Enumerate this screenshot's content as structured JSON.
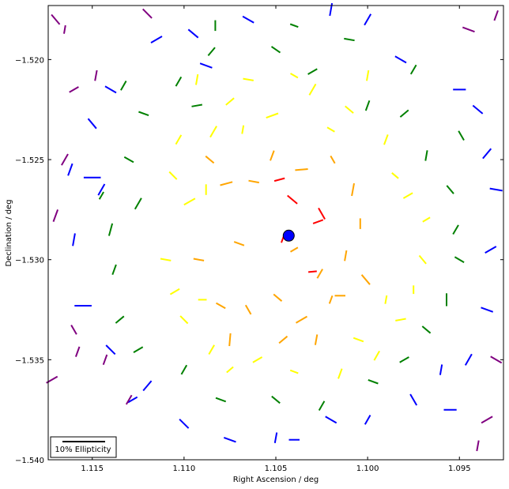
{
  "chart_data": {
    "type": "scatter",
    "xlabel": "Right Ascension / deg",
    "ylabel": "Declination / deg",
    "xlim": [
      1.1174,
      1.0926
    ],
    "ylim": [
      -1.54,
      -1.5173
    ],
    "x_ticks": [
      "1.115",
      "1.110",
      "1.105",
      "1.100",
      "1.095"
    ],
    "x_tick_values": [
      1.115,
      1.11,
      1.105,
      1.1,
      1.095
    ],
    "y_ticks": [
      "−1.520",
      "−1.525",
      "−1.530",
      "−1.535",
      "−1.540"
    ],
    "y_tick_values": [
      -1.52,
      -1.525,
      -1.53,
      -1.535,
      -1.54
    ],
    "x_reversed": true,
    "grid": false,
    "center": {
      "ra": 1.1043,
      "dec": -1.5288,
      "color": "#0000ff"
    },
    "legend": {
      "label": "10% Ellipticity",
      "placement": "lower-left",
      "scale_ellipticity": 0.1
    },
    "series_colors": {
      "red": "#ff0000",
      "orange": "#ffa500",
      "yellow": "#ffff00",
      "green": "#008000",
      "blue": "#0000ff",
      "purple": "#800080"
    },
    "sticks": [
      {
        "ra": 1.1046,
        "dec": -1.5289,
        "e": 0.025,
        "angle": 70,
        "color": "red"
      },
      {
        "ra": 1.1027,
        "dec": -1.5281,
        "e": 0.025,
        "angle": 20,
        "color": "red"
      },
      {
        "ra": 1.1041,
        "dec": -1.527,
        "e": 0.03,
        "angle": -40,
        "color": "red"
      },
      {
        "ra": 1.103,
        "dec": -1.5306,
        "e": 0.02,
        "angle": 5,
        "color": "red"
      },
      {
        "ra": 1.1048,
        "dec": -1.526,
        "e": 0.025,
        "angle": 15,
        "color": "red"
      },
      {
        "ra": 1.1025,
        "dec": -1.5277,
        "e": 0.03,
        "angle": -60,
        "color": "red"
      },
      {
        "ra": 1.1077,
        "dec": -1.5262,
        "e": 0.03,
        "angle": 15,
        "color": "orange"
      },
      {
        "ra": 1.1062,
        "dec": -1.5261,
        "e": 0.025,
        "angle": -10,
        "color": "orange"
      },
      {
        "ra": 1.1086,
        "dec": -1.525,
        "e": 0.025,
        "angle": -40,
        "color": "orange"
      },
      {
        "ra": 1.1036,
        "dec": -1.5255,
        "e": 0.03,
        "angle": 5,
        "color": "orange"
      },
      {
        "ra": 1.1008,
        "dec": -1.5265,
        "e": 0.03,
        "angle": 80,
        "color": "orange"
      },
      {
        "ra": 1.1004,
        "dec": -1.5282,
        "e": 0.025,
        "angle": 90,
        "color": "orange"
      },
      {
        "ra": 1.1049,
        "dec": -1.5319,
        "e": 0.025,
        "angle": -40,
        "color": "orange"
      },
      {
        "ra": 1.1036,
        "dec": -1.533,
        "e": 0.03,
        "angle": 30,
        "color": "orange"
      },
      {
        "ra": 1.1046,
        "dec": -1.534,
        "e": 0.025,
        "angle": 40,
        "color": "orange"
      },
      {
        "ra": 1.1026,
        "dec": -1.5307,
        "e": 0.025,
        "angle": 60,
        "color": "orange"
      },
      {
        "ra": 1.1001,
        "dec": -1.531,
        "e": 0.03,
        "angle": -50,
        "color": "orange"
      },
      {
        "ra": 1.102,
        "dec": -1.532,
        "e": 0.02,
        "angle": 70,
        "color": "orange"
      },
      {
        "ra": 1.108,
        "dec": -1.5323,
        "e": 0.025,
        "angle": -30,
        "color": "orange"
      },
      {
        "ra": 1.1075,
        "dec": -1.534,
        "e": 0.03,
        "angle": 85,
        "color": "orange"
      },
      {
        "ra": 1.1065,
        "dec": -1.5325,
        "e": 0.025,
        "angle": -60,
        "color": "orange"
      },
      {
        "ra": 1.1092,
        "dec": -1.53,
        "e": 0.025,
        "angle": -10,
        "color": "orange"
      },
      {
        "ra": 1.1052,
        "dec": -1.5248,
        "e": 0.025,
        "angle": 70,
        "color": "orange"
      },
      {
        "ra": 1.1019,
        "dec": -1.525,
        "e": 0.02,
        "angle": -60,
        "color": "orange"
      },
      {
        "ra": 1.1012,
        "dec": -1.5298,
        "e": 0.025,
        "angle": 80,
        "color": "orange"
      },
      {
        "ra": 1.104,
        "dec": -1.5295,
        "e": 0.02,
        "angle": 30,
        "color": "orange"
      },
      {
        "ra": 1.107,
        "dec": -1.5292,
        "e": 0.025,
        "angle": -20,
        "color": "orange"
      },
      {
        "ra": 1.1028,
        "dec": -1.534,
        "e": 0.025,
        "angle": 80,
        "color": "orange"
      },
      {
        "ra": 1.1015,
        "dec": -1.5318,
        "e": 0.025,
        "angle": 0,
        "color": "orange"
      },
      {
        "ra": 1.111,
        "dec": -1.53,
        "e": 0.025,
        "angle": -10,
        "color": "yellow"
      },
      {
        "ra": 1.1097,
        "dec": -1.5271,
        "e": 0.03,
        "angle": 30,
        "color": "yellow"
      },
      {
        "ra": 1.1088,
        "dec": -1.5265,
        "e": 0.025,
        "angle": 90,
        "color": "yellow"
      },
      {
        "ra": 1.1106,
        "dec": -1.5258,
        "e": 0.025,
        "angle": -45,
        "color": "yellow"
      },
      {
        "ra": 1.1084,
        "dec": -1.5236,
        "e": 0.03,
        "angle": 60,
        "color": "yellow"
      },
      {
        "ra": 1.1075,
        "dec": -1.5221,
        "e": 0.025,
        "angle": 40,
        "color": "yellow"
      },
      {
        "ra": 1.1065,
        "dec": -1.521,
        "e": 0.025,
        "angle": -10,
        "color": "yellow"
      },
      {
        "ra": 1.1052,
        "dec": -1.5228,
        "e": 0.03,
        "angle": 20,
        "color": "yellow"
      },
      {
        "ra": 1.103,
        "dec": -1.5215,
        "e": 0.03,
        "angle": 60,
        "color": "yellow"
      },
      {
        "ra": 1.101,
        "dec": -1.5225,
        "e": 0.025,
        "angle": -40,
        "color": "yellow"
      },
      {
        "ra": 1.099,
        "dec": -1.524,
        "e": 0.025,
        "angle": 70,
        "color": "yellow"
      },
      {
        "ra": 1.0978,
        "dec": -1.5268,
        "e": 0.025,
        "angle": 30,
        "color": "yellow"
      },
      {
        "ra": 1.097,
        "dec": -1.53,
        "e": 0.025,
        "angle": -50,
        "color": "yellow"
      },
      {
        "ra": 1.0975,
        "dec": -1.5315,
        "e": 0.02,
        "angle": 90,
        "color": "yellow"
      },
      {
        "ra": 1.0982,
        "dec": -1.533,
        "e": 0.025,
        "angle": 10,
        "color": "yellow"
      },
      {
        "ra": 1.0995,
        "dec": -1.5348,
        "e": 0.025,
        "angle": 60,
        "color": "yellow"
      },
      {
        "ra": 1.1015,
        "dec": -1.5357,
        "e": 0.025,
        "angle": 70,
        "color": "yellow"
      },
      {
        "ra": 1.104,
        "dec": -1.5356,
        "e": 0.02,
        "angle": -20,
        "color": "yellow"
      },
      {
        "ra": 1.106,
        "dec": -1.535,
        "e": 0.025,
        "angle": 30,
        "color": "yellow"
      },
      {
        "ra": 1.1085,
        "dec": -1.5345,
        "e": 0.025,
        "angle": 60,
        "color": "yellow"
      },
      {
        "ra": 1.11,
        "dec": -1.533,
        "e": 0.025,
        "angle": -45,
        "color": "yellow"
      },
      {
        "ra": 1.1105,
        "dec": -1.5316,
        "e": 0.025,
        "angle": 30,
        "color": "yellow"
      },
      {
        "ra": 1.1093,
        "dec": -1.521,
        "e": 0.025,
        "angle": 80,
        "color": "yellow"
      },
      {
        "ra": 1.104,
        "dec": -1.5208,
        "e": 0.02,
        "angle": -30,
        "color": "yellow"
      },
      {
        "ra": 1.1,
        "dec": -1.5208,
        "e": 0.025,
        "angle": 80,
        "color": "yellow"
      },
      {
        "ra": 1.0985,
        "dec": -1.5258,
        "e": 0.02,
        "angle": -40,
        "color": "yellow"
      },
      {
        "ra": 1.0968,
        "dec": -1.528,
        "e": 0.02,
        "angle": 30,
        "color": "yellow"
      },
      {
        "ra": 1.1103,
        "dec": -1.524,
        "e": 0.025,
        "angle": 60,
        "color": "yellow"
      },
      {
        "ra": 1.109,
        "dec": -1.532,
        "e": 0.02,
        "angle": 0,
        "color": "yellow"
      },
      {
        "ra": 1.1068,
        "dec": -1.5235,
        "e": 0.02,
        "angle": 80,
        "color": "yellow"
      },
      {
        "ra": 1.102,
        "dec": -1.5235,
        "e": 0.02,
        "angle": -30,
        "color": "yellow"
      },
      {
        "ra": 1.099,
        "dec": -1.532,
        "e": 0.02,
        "angle": 80,
        "color": "yellow"
      },
      {
        "ra": 1.1005,
        "dec": -1.534,
        "e": 0.025,
        "angle": -20,
        "color": "yellow"
      },
      {
        "ra": 1.1075,
        "dec": -1.5355,
        "e": 0.02,
        "angle": 40,
        "color": "yellow"
      },
      {
        "ra": 1.114,
        "dec": -1.5285,
        "e": 0.03,
        "angle": 75,
        "color": "green"
      },
      {
        "ra": 1.1125,
        "dec": -1.5272,
        "e": 0.03,
        "angle": 60,
        "color": "green"
      },
      {
        "ra": 1.113,
        "dec": -1.525,
        "e": 0.025,
        "angle": -30,
        "color": "green"
      },
      {
        "ra": 1.1122,
        "dec": -1.5227,
        "e": 0.025,
        "angle": -20,
        "color": "green"
      },
      {
        "ra": 1.1103,
        "dec": -1.5211,
        "e": 0.025,
        "angle": 60,
        "color": "green"
      },
      {
        "ra": 1.1093,
        "dec": -1.5223,
        "e": 0.025,
        "angle": 10,
        "color": "green"
      },
      {
        "ra": 1.1085,
        "dec": -1.5196,
        "e": 0.025,
        "angle": 50,
        "color": "green"
      },
      {
        "ra": 1.105,
        "dec": -1.5195,
        "e": 0.025,
        "angle": -35,
        "color": "green"
      },
      {
        "ra": 1.103,
        "dec": -1.5206,
        "e": 0.025,
        "angle": 30,
        "color": "green"
      },
      {
        "ra": 1.1,
        "dec": -1.5223,
        "e": 0.025,
        "angle": 70,
        "color": "green"
      },
      {
        "ra": 1.098,
        "dec": -1.5227,
        "e": 0.025,
        "angle": 40,
        "color": "green"
      },
      {
        "ra": 1.0968,
        "dec": -1.5248,
        "e": 0.025,
        "angle": 80,
        "color": "green"
      },
      {
        "ra": 1.0955,
        "dec": -1.5265,
        "e": 0.025,
        "angle": -50,
        "color": "green"
      },
      {
        "ra": 1.0952,
        "dec": -1.5285,
        "e": 0.025,
        "angle": 60,
        "color": "green"
      },
      {
        "ra": 1.095,
        "dec": -1.53,
        "e": 0.025,
        "angle": -30,
        "color": "green"
      },
      {
        "ra": 1.0957,
        "dec": -1.532,
        "e": 0.03,
        "angle": 90,
        "color": "green"
      },
      {
        "ra": 1.0968,
        "dec": -1.5335,
        "e": 0.025,
        "angle": -40,
        "color": "green"
      },
      {
        "ra": 1.098,
        "dec": -1.535,
        "e": 0.025,
        "angle": 30,
        "color": "green"
      },
      {
        "ra": 1.0997,
        "dec": -1.5361,
        "e": 0.025,
        "angle": -20,
        "color": "green"
      },
      {
        "ra": 1.1025,
        "dec": -1.5373,
        "e": 0.025,
        "angle": 60,
        "color": "green"
      },
      {
        "ra": 1.105,
        "dec": -1.537,
        "e": 0.025,
        "angle": -40,
        "color": "green"
      },
      {
        "ra": 1.108,
        "dec": -1.537,
        "e": 0.025,
        "angle": -20,
        "color": "green"
      },
      {
        "ra": 1.11,
        "dec": -1.5355,
        "e": 0.025,
        "angle": 60,
        "color": "green"
      },
      {
        "ra": 1.1125,
        "dec": -1.5345,
        "e": 0.025,
        "angle": 30,
        "color": "green"
      },
      {
        "ra": 1.1135,
        "dec": -1.533,
        "e": 0.025,
        "angle": 40,
        "color": "green"
      },
      {
        "ra": 1.1138,
        "dec": -1.5305,
        "e": 0.025,
        "angle": 70,
        "color": "green"
      },
      {
        "ra": 1.1083,
        "dec": -1.5183,
        "e": 0.025,
        "angle": 90,
        "color": "green"
      },
      {
        "ra": 1.101,
        "dec": -1.519,
        "e": 0.025,
        "angle": -10,
        "color": "green"
      },
      {
        "ra": 1.0975,
        "dec": -1.5205,
        "e": 0.025,
        "angle": 60,
        "color": "green"
      },
      {
        "ra": 1.1133,
        "dec": -1.5213,
        "e": 0.025,
        "angle": 60,
        "color": "green"
      },
      {
        "ra": 1.104,
        "dec": -1.5183,
        "e": 0.02,
        "angle": -20,
        "color": "green"
      },
      {
        "ra": 1.0949,
        "dec": -1.5238,
        "e": 0.025,
        "angle": -60,
        "color": "green"
      },
      {
        "ra": 1.1145,
        "dec": -1.5268,
        "e": 0.02,
        "angle": 60,
        "color": "green"
      },
      {
        "ra": 1.115,
        "dec": -1.5259,
        "e": 0.04,
        "angle": 0,
        "color": "blue"
      },
      {
        "ra": 1.115,
        "dec": -1.5232,
        "e": 0.03,
        "angle": -50,
        "color": "blue"
      },
      {
        "ra": 1.114,
        "dec": -1.5215,
        "e": 0.03,
        "angle": -30,
        "color": "blue"
      },
      {
        "ra": 1.1145,
        "dec": -1.5265,
        "e": 0.03,
        "angle": 60,
        "color": "blue"
      },
      {
        "ra": 1.1155,
        "dec": -1.5323,
        "e": 0.04,
        "angle": 0,
        "color": "blue"
      },
      {
        "ra": 1.114,
        "dec": -1.5345,
        "e": 0.03,
        "angle": -45,
        "color": "blue"
      },
      {
        "ra": 1.112,
        "dec": -1.5363,
        "e": 0.03,
        "angle": 50,
        "color": "blue"
      },
      {
        "ra": 1.11,
        "dec": -1.5382,
        "e": 0.03,
        "angle": -45,
        "color": "blue"
      },
      {
        "ra": 1.1075,
        "dec": -1.539,
        "e": 0.03,
        "angle": -20,
        "color": "blue"
      },
      {
        "ra": 1.105,
        "dec": -1.5389,
        "e": 0.025,
        "angle": 80,
        "color": "blue"
      },
      {
        "ra": 1.102,
        "dec": -1.538,
        "e": 0.03,
        "angle": -30,
        "color": "blue"
      },
      {
        "ra": 1.1,
        "dec": -1.538,
        "e": 0.025,
        "angle": 60,
        "color": "blue"
      },
      {
        "ra": 1.0975,
        "dec": -1.537,
        "e": 0.03,
        "angle": -60,
        "color": "blue"
      },
      {
        "ra": 1.0955,
        "dec": -1.5375,
        "e": 0.03,
        "angle": 0,
        "color": "blue"
      },
      {
        "ra": 1.0945,
        "dec": -1.535,
        "e": 0.03,
        "angle": 60,
        "color": "blue"
      },
      {
        "ra": 1.0935,
        "dec": -1.5325,
        "e": 0.03,
        "angle": -20,
        "color": "blue"
      },
      {
        "ra": 1.0933,
        "dec": -1.5295,
        "e": 0.03,
        "angle": 30,
        "color": "blue"
      },
      {
        "ra": 1.093,
        "dec": -1.5265,
        "e": 0.03,
        "angle": -10,
        "color": "blue"
      },
      {
        "ra": 1.0935,
        "dec": -1.5247,
        "e": 0.03,
        "angle": 50,
        "color": "blue"
      },
      {
        "ra": 1.094,
        "dec": -1.5225,
        "e": 0.03,
        "angle": -40,
        "color": "blue"
      },
      {
        "ra": 1.095,
        "dec": -1.5215,
        "e": 0.03,
        "angle": 0,
        "color": "blue"
      },
      {
        "ra": 1.0982,
        "dec": -1.52,
        "e": 0.03,
        "angle": -30,
        "color": "blue"
      },
      {
        "ra": 1.1,
        "dec": -1.518,
        "e": 0.03,
        "angle": 60,
        "color": "blue"
      },
      {
        "ra": 1.102,
        "dec": -1.5175,
        "e": 0.03,
        "angle": 80,
        "color": "blue"
      },
      {
        "ra": 1.1065,
        "dec": -1.518,
        "e": 0.03,
        "angle": -30,
        "color": "blue"
      },
      {
        "ra": 1.1095,
        "dec": -1.5187,
        "e": 0.03,
        "angle": -40,
        "color": "blue"
      },
      {
        "ra": 1.1115,
        "dec": -1.519,
        "e": 0.03,
        "angle": 30,
        "color": "blue"
      },
      {
        "ra": 1.1088,
        "dec": -1.5203,
        "e": 0.03,
        "angle": -20,
        "color": "blue"
      },
      {
        "ra": 1.1162,
        "dec": -1.5255,
        "e": 0.03,
        "angle": 70,
        "color": "blue"
      },
      {
        "ra": 1.116,
        "dec": -1.529,
        "e": 0.03,
        "angle": 80,
        "color": "blue"
      },
      {
        "ra": 1.1128,
        "dec": -1.537,
        "e": 0.025,
        "angle": 30,
        "color": "blue"
      },
      {
        "ra": 1.096,
        "dec": -1.5355,
        "e": 0.025,
        "angle": 80,
        "color": "blue"
      },
      {
        "ra": 1.104,
        "dec": -1.539,
        "e": 0.025,
        "angle": 0,
        "color": "blue"
      },
      {
        "ra": 1.117,
        "dec": -1.518,
        "e": 0.03,
        "angle": -50,
        "color": "purple"
      },
      {
        "ra": 1.1165,
        "dec": -1.525,
        "e": 0.03,
        "angle": 60,
        "color": "purple"
      },
      {
        "ra": 1.117,
        "dec": -1.5278,
        "e": 0.03,
        "angle": 70,
        "color": "purple"
      },
      {
        "ra": 1.1172,
        "dec": -1.536,
        "e": 0.03,
        "angle": 30,
        "color": "purple"
      },
      {
        "ra": 1.112,
        "dec": -1.5177,
        "e": 0.03,
        "angle": -45,
        "color": "purple"
      },
      {
        "ra": 1.1143,
        "dec": -1.535,
        "e": 0.025,
        "angle": 70,
        "color": "purple"
      },
      {
        "ra": 1.113,
        "dec": -1.537,
        "e": 0.025,
        "angle": 60,
        "color": "purple"
      },
      {
        "ra": 1.0945,
        "dec": -1.5185,
        "e": 0.03,
        "angle": -20,
        "color": "purple"
      },
      {
        "ra": 1.093,
        "dec": -1.5178,
        "e": 0.025,
        "angle": 70,
        "color": "purple"
      },
      {
        "ra": 1.0935,
        "dec": -1.538,
        "e": 0.03,
        "angle": 30,
        "color": "purple"
      },
      {
        "ra": 1.093,
        "dec": -1.535,
        "e": 0.03,
        "angle": -30,
        "color": "purple"
      },
      {
        "ra": 1.116,
        "dec": -1.5215,
        "e": 0.025,
        "angle": 30,
        "color": "purple"
      },
      {
        "ra": 1.116,
        "dec": -1.5335,
        "e": 0.025,
        "angle": -60,
        "color": "purple"
      },
      {
        "ra": 1.1158,
        "dec": -1.5346,
        "e": 0.025,
        "angle": 70,
        "color": "purple"
      },
      {
        "ra": 1.1148,
        "dec": -1.5208,
        "e": 0.025,
        "angle": 80,
        "color": "purple"
      },
      {
        "ra": 1.094,
        "dec": -1.5393,
        "e": 0.025,
        "angle": 80,
        "color": "purple"
      },
      {
        "ra": 1.1165,
        "dec": -1.5185,
        "e": 0.02,
        "angle": 80,
        "color": "purple"
      }
    ]
  }
}
